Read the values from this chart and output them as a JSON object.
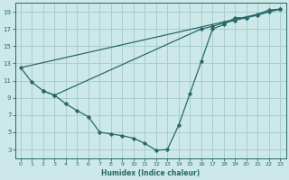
{
  "xlabel": "Humidex (Indice chaleur)",
  "bg_color": "#cce8e8",
  "grid_color": "#a8cece",
  "line_color": "#2a6868",
  "xlim": [
    -0.5,
    23.5
  ],
  "ylim": [
    2.0,
    20.0
  ],
  "xticks": [
    0,
    1,
    2,
    3,
    4,
    5,
    6,
    7,
    8,
    9,
    10,
    11,
    12,
    13,
    14,
    15,
    16,
    17,
    18,
    19,
    20,
    21,
    22,
    23
  ],
  "yticks": [
    3,
    5,
    7,
    9,
    11,
    13,
    15,
    17,
    19
  ],
  "line1_x": [
    0,
    1,
    2,
    3,
    4,
    5,
    6,
    7,
    8,
    9,
    10,
    11,
    12,
    13,
    14,
    15,
    16,
    17,
    18,
    19,
    20,
    21,
    22,
    23
  ],
  "line1_y": [
    12.5,
    10.8,
    9.8,
    9.3,
    8.3,
    7.5,
    6.8,
    5.0,
    4.8,
    4.6,
    4.3,
    3.7,
    2.9,
    3.0,
    5.8,
    9.5,
    13.2,
    17.0,
    17.5,
    18.3,
    18.3,
    18.7,
    19.2,
    19.3
  ],
  "line2_x": [
    0,
    23
  ],
  "line2_y": [
    12.5,
    19.3
  ],
  "line3_x": [
    2,
    3,
    16,
    17,
    18,
    19,
    20,
    21,
    22,
    23
  ],
  "line3_y": [
    9.8,
    9.3,
    17.0,
    17.3,
    17.7,
    18.0,
    18.3,
    18.6,
    19.0,
    19.3
  ]
}
